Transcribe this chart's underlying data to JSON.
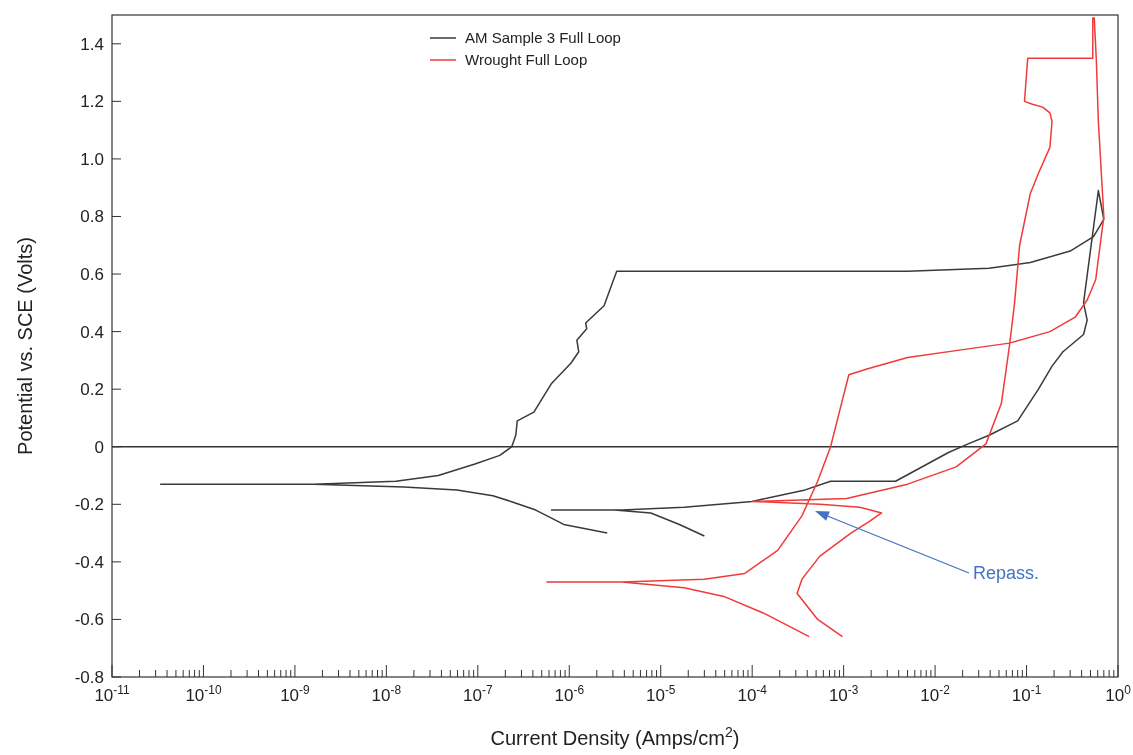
{
  "chart_data": {
    "type": "line",
    "xlabel": "Current Density (Amps/cm$^{2}$)",
    "ylabel": "Potential vs. SCE (Volts)",
    "log": "x",
    "grid": false,
    "legend": "top",
    "xlim": [
      1e-11,
      1
    ],
    "ylim": [
      -0.8,
      1.5
    ],
    "xticks": [
      {
        "value": 1e-11,
        "label": "10$^{-11}$"
      },
      {
        "value": 2e-11,
        "label": null
      },
      {
        "value": 3e-11,
        "label": null
      },
      {
        "value": 4e-11,
        "label": null
      },
      {
        "value": 5e-11,
        "label": null
      },
      {
        "value": 6e-11,
        "label": null
      },
      {
        "value": 7e-11,
        "label": null
      },
      {
        "value": 8e-11,
        "label": null
      },
      {
        "value": 9e-11,
        "label": null
      },
      {
        "value": 1e-10,
        "label": "10$^{-10}$"
      },
      {
        "value": 2e-10,
        "label": null
      },
      {
        "value": 3e-10,
        "label": null
      },
      {
        "value": 4e-10,
        "label": null
      },
      {
        "value": 5e-10,
        "label": null
      },
      {
        "value": 6e-10,
        "label": null
      },
      {
        "value": 7e-10,
        "label": null
      },
      {
        "value": 8e-10,
        "label": null
      },
      {
        "value": 9e-10,
        "label": null
      },
      {
        "value": 1e-09,
        "label": "10$^{-9}$"
      },
      {
        "value": 2e-09,
        "label": null
      },
      {
        "value": 3e-09,
        "label": null
      },
      {
        "value": 4e-09,
        "label": null
      },
      {
        "value": 5e-09,
        "label": null
      },
      {
        "value": 6e-09,
        "label": null
      },
      {
        "value": 7e-09,
        "label": null
      },
      {
        "value": 8e-09,
        "label": null
      },
      {
        "value": 9e-09,
        "label": null
      },
      {
        "value": 1e-08,
        "label": "10$^{-8}$"
      },
      {
        "value": 2e-08,
        "label": null
      },
      {
        "value": 3e-08,
        "label": null
      },
      {
        "value": 4e-08,
        "label": null
      },
      {
        "value": 5e-08,
        "label": null
      },
      {
        "value": 6e-08,
        "label": null
      },
      {
        "value": 7e-08,
        "label": null
      },
      {
        "value": 8e-08,
        "label": null
      },
      {
        "value": 9e-08,
        "label": null
      },
      {
        "value": 1e-07,
        "label": "10$^{-7}$"
      },
      {
        "value": 2e-07,
        "label": null
      },
      {
        "value": 3e-07,
        "label": null
      },
      {
        "value": 4e-07,
        "label": null
      },
      {
        "value": 5e-07,
        "label": null
      },
      {
        "value": 6e-07,
        "label": null
      },
      {
        "value": 7e-07,
        "label": null
      },
      {
        "value": 8e-07,
        "label": null
      },
      {
        "value": 9e-07,
        "label": null
      },
      {
        "value": 1e-06,
        "label": "10$^{-6}$"
      },
      {
        "value": 2e-06,
        "label": null
      },
      {
        "value": 3e-06,
        "label": null
      },
      {
        "value": 4e-06,
        "label": null
      },
      {
        "value": 5e-06,
        "label": null
      },
      {
        "value": 6e-06,
        "label": null
      },
      {
        "value": 7e-06,
        "label": null
      },
      {
        "value": 8e-06,
        "label": null
      },
      {
        "value": 9e-06,
        "label": null
      },
      {
        "value": 1e-05,
        "label": "10$^{-5}$"
      },
      {
        "value": 2e-05,
        "label": null
      },
      {
        "value": 3e-05,
        "label": null
      },
      {
        "value": 4e-05,
        "label": null
      },
      {
        "value": 5e-05,
        "label": null
      },
      {
        "value": 6e-05,
        "label": null
      },
      {
        "value": 7e-05,
        "label": null
      },
      {
        "value": 8e-05,
        "label": null
      },
      {
        "value": 9e-05,
        "label": null
      },
      {
        "value": 0.0001,
        "label": "10$^{-4}$"
      },
      {
        "value": 0.0002,
        "label": null
      },
      {
        "value": 0.0003,
        "label": null
      },
      {
        "value": 0.0004,
        "label": null
      },
      {
        "value": 0.0005,
        "label": null
      },
      {
        "value": 0.0006,
        "label": null
      },
      {
        "value": 0.0007,
        "label": null
      },
      {
        "value": 0.0008,
        "label": null
      },
      {
        "value": 0.0009,
        "label": null
      },
      {
        "value": 0.001,
        "label": "10$^{-3}$"
      },
      {
        "value": 0.002,
        "label": null
      },
      {
        "value": 0.003,
        "label": null
      },
      {
        "value": 0.004,
        "label": null
      },
      {
        "value": 0.005,
        "label": null
      },
      {
        "value": 0.006,
        "label": null
      },
      {
        "value": 0.007,
        "label": null
      },
      {
        "value": 0.008,
        "label": null
      },
      {
        "value": 0.009,
        "label": null
      },
      {
        "value": 0.01,
        "label": "10$^{-2}$"
      },
      {
        "value": 0.02,
        "label": null
      },
      {
        "value": 0.03,
        "label": null
      },
      {
        "value": 0.04,
        "label": null
      },
      {
        "value": 0.05,
        "label": null
      },
      {
        "value": 0.06,
        "label": null
      },
      {
        "value": 0.07,
        "label": null
      },
      {
        "value": 0.08,
        "label": null
      },
      {
        "value": 0.09,
        "label": null
      },
      {
        "value": 0.1,
        "label": "10$^{-1}$"
      },
      {
        "value": 0.2,
        "label": null
      },
      {
        "value": 0.3,
        "label": null
      },
      {
        "value": 0.4,
        "label": null
      },
      {
        "value": 0.5,
        "label": null
      },
      {
        "value": 0.6,
        "label": null
      },
      {
        "value": 0.7,
        "label": null
      },
      {
        "value": 0.8,
        "label": null
      },
      {
        "value": 0.9,
        "label": null
      },
      {
        "value": 1,
        "label": "10$^{0}$"
      }
    ],
    "yticks": [
      -0.8,
      -0.6,
      -0.4,
      -0.2,
      0,
      0.2,
      0.4,
      0.6,
      0.8,
      {
        "value": 1,
        "label": "1.0"
      },
      1.2,
      1.4
    ],
    "ref_lines": [
      {
        "axis": "y",
        "value": 0,
        "color": "#333333"
      }
    ],
    "annotations": [
      "Repass."
    ],
    "series": [
      {
        "name": "AM Sample 3 Full Loop",
        "color": "#3a3a3a",
        "x": [
          2.6e-06,
          8.7e-07,
          4.3e-07,
          2.3e-07,
          1.46e-07,
          5.9e-08,
          1.55e-08,
          1.6e-09,
          3.4e-11,
          1.6e-09,
          1.27e-08,
          3.7e-08,
          9.3e-08,
          1.74e-07,
          2.35e-07,
          2.6e-07,
          2.7e-07,
          4.1e-07,
          6.4e-07,
          1.04e-06,
          1.27e-06,
          1.21e-06,
          1.55e-06,
          1.51e-06,
          2.4e-06,
          3.3e-06,
          0.005,
          0.039,
          0.11,
          0.3,
          0.54,
          0.7,
          0.61,
          0.42,
          0.46,
          0.42,
          0.25,
          0.19,
          0.135,
          0.08,
          0.039,
          0.023,
          0.014,
          0.0037,
          0.00072,
          0.00038,
          0.0001,
          1.8e-05,
          3.75e-06,
          6.4e-07,
          3.1e-06,
          7.8e-06,
          1.6e-05,
          3e-05
        ],
        "values": [
          -0.3,
          -0.27,
          -0.22,
          -0.19,
          -0.17,
          -0.15,
          -0.14,
          -0.13,
          -0.13,
          -0.13,
          -0.12,
          -0.1,
          -0.06,
          -0.03,
          0.0,
          0.04,
          0.09,
          0.12,
          0.22,
          0.29,
          0.33,
          0.37,
          0.41,
          0.43,
          0.49,
          0.61,
          0.61,
          0.62,
          0.64,
          0.68,
          0.73,
          0.79,
          0.89,
          0.5,
          0.44,
          0.39,
          0.33,
          0.28,
          0.2,
          0.09,
          0.04,
          0.01,
          -0.02,
          -0.12,
          -0.12,
          -0.15,
          -0.19,
          -0.21,
          -0.22,
          -0.22,
          -0.22,
          -0.23,
          -0.27,
          -0.31
        ]
      },
      {
        "name": "Wrought Full Loop",
        "color": "#f03a3a",
        "x": [
          0.00042,
          0.000137,
          4.9e-05,
          1.8e-05,
          3.75e-06,
          5.7e-07,
          3.75e-06,
          3e-05,
          8.3e-05,
          0.00019,
          0.00035,
          0.00052,
          0.00072,
          0.00088,
          0.00114,
          0.0018,
          0.005,
          0.023,
          0.065,
          0.18,
          0.34,
          0.46,
          0.57,
          0.7,
          0.66,
          0.61,
          0.58,
          0.55,
          0.53,
          0.53,
          0.103,
          0.095,
          0.116,
          0.15,
          0.18,
          0.19,
          0.18,
          0.135,
          0.11,
          0.084,
          0.074,
          0.065,
          0.053,
          0.036,
          0.017,
          0.005,
          0.00108,
          0.0001,
          0.00055,
          0.0015,
          0.0026,
          0.0019,
          0.0012,
          0.00055,
          0.00035,
          0.00031,
          0.00052,
          0.00097
        ],
        "values": [
          -0.66,
          -0.58,
          -0.52,
          -0.49,
          -0.47,
          -0.47,
          -0.47,
          -0.46,
          -0.44,
          -0.36,
          -0.24,
          -0.12,
          0.0,
          0.11,
          0.25,
          0.27,
          0.31,
          0.34,
          0.36,
          0.4,
          0.45,
          0.51,
          0.58,
          0.8,
          0.94,
          1.13,
          1.34,
          1.49,
          1.49,
          1.35,
          1.35,
          1.2,
          1.19,
          1.18,
          1.16,
          1.13,
          1.04,
          0.95,
          0.88,
          0.7,
          0.5,
          0.35,
          0.15,
          0.01,
          -0.07,
          -0.13,
          -0.18,
          -0.19,
          -0.2,
          -0.21,
          -0.23,
          -0.26,
          -0.3,
          -0.38,
          -0.46,
          -0.51,
          -0.6,
          -0.66
        ]
      }
    ]
  }
}
